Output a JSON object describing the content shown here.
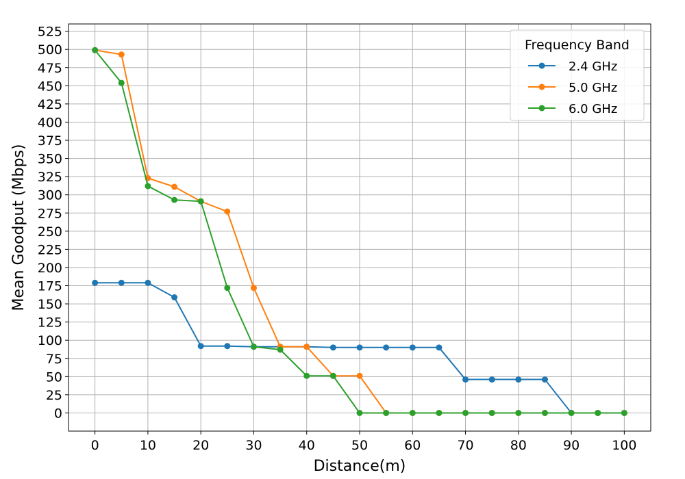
{
  "chart_data": {
    "type": "line",
    "title": "",
    "xlabel": "Distance(m)",
    "ylabel": "Mean Goodput (Mbps)",
    "x": [
      0,
      5,
      10,
      15,
      20,
      25,
      30,
      35,
      40,
      45,
      50,
      55,
      60,
      65,
      70,
      75,
      80,
      85,
      90,
      95,
      100
    ],
    "xlim": [
      -5,
      105
    ],
    "ylim": [
      -25,
      535
    ],
    "xticks": [
      "0",
      "10",
      "20",
      "30",
      "40",
      "50",
      "60",
      "70",
      "80",
      "90",
      "100"
    ],
    "yticks": [
      "0",
      "25",
      "50",
      "75",
      "100",
      "125",
      "150",
      "175",
      "200",
      "225",
      "250",
      "275",
      "300",
      "325",
      "350",
      "375",
      "400",
      "425",
      "450",
      "475",
      "500",
      "525"
    ],
    "grid": true,
    "legend": {
      "title": "Frequency Band",
      "placement": "top-right"
    },
    "series": [
      {
        "name": "2.4 GHz",
        "color": "#1f77b4",
        "values": [
          179,
          179,
          179,
          159,
          92,
          92,
          91,
          91,
          91,
          90,
          90,
          90,
          90,
          90,
          46,
          46,
          46,
          46,
          0,
          0,
          0
        ]
      },
      {
        "name": "5.0 GHz",
        "color": "#ff7f0e",
        "values": [
          499,
          493,
          323,
          311,
          291,
          277,
          172,
          91,
          91,
          51,
          51,
          0,
          0,
          0,
          0,
          0,
          0,
          0,
          0,
          0,
          0
        ]
      },
      {
        "name": "6.0 GHz",
        "color": "#2ca02c",
        "values": [
          499,
          454,
          312,
          293,
          291,
          172,
          91,
          87,
          51,
          51,
          0,
          0,
          0,
          0,
          0,
          0,
          0,
          0,
          0,
          0,
          0
        ]
      }
    ]
  }
}
